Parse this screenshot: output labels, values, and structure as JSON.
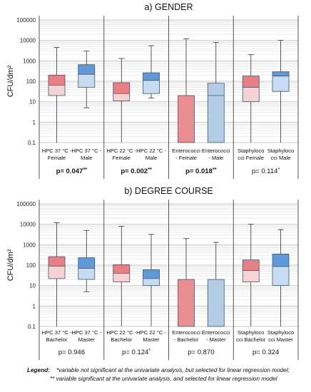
{
  "chart_data": [
    {
      "type": "boxplot",
      "title": "a) GENDER",
      "ylabel": "CFU/dm²",
      "yscale": "log",
      "ylim": [
        0.1,
        100000
      ],
      "ytick_labels": [
        "0.1",
        "1",
        "10",
        "100",
        "1000",
        "10000",
        "100000"
      ],
      "grid": true,
      "categories": [
        "HPC 37 °C - Female",
        "HPC 37 °C - Male",
        "HPC 22 °C - Female",
        "HPC 22 °C - Male",
        "Enterococci - Female",
        "Enterococci - Male",
        "Staphylococci Female",
        "Staphylococci Male"
      ],
      "category_lines": [
        [
          "HPC 37 °C -",
          "Female"
        ],
        [
          "HPC 37 °C -",
          "Male"
        ],
        [
          "HPC 22 °C -",
          "Female"
        ],
        [
          "HPC 22 °C -",
          "Male"
        ],
        [
          "Enterococci",
          "- Female"
        ],
        [
          "Enterococci",
          "- Male"
        ],
        [
          "Staphyloco",
          "cci Female"
        ],
        [
          "Staphyloco",
          "cci Male"
        ]
      ],
      "boxes": [
        {
          "min": 0.1,
          "q1": 20,
          "median": 65,
          "q3": 200,
          "max": 4500
        },
        {
          "min": 5,
          "q1": 50,
          "median": 220,
          "q3": 650,
          "max": 3000
        },
        {
          "min": 0.1,
          "q1": 11,
          "median": 25,
          "q3": 85,
          "max": 1300
        },
        {
          "min": 15,
          "q1": 25,
          "median": 110,
          "q3": 260,
          "max": 5500
        },
        {
          "min": 0.1,
          "q1": 0.1,
          "median": 0.1,
          "q3": 20,
          "max": 12000
        },
        {
          "min": 0.1,
          "q1": 0.1,
          "median": 20,
          "q3": 80,
          "max": 8000
        },
        {
          "min": 0.1,
          "q1": 10,
          "median": 50,
          "q3": 180,
          "max": 2000
        },
        {
          "min": 0.1,
          "q1": 32,
          "median": 180,
          "q3": 290,
          "max": 10000
        }
      ],
      "p_values": [
        {
          "label": "p= 0.047",
          "stars": "**",
          "bold": true
        },
        {
          "label": "p= 0.002",
          "stars": "**",
          "bold": true
        },
        {
          "label": "p= 0.018",
          "stars": "**",
          "bold": true
        },
        {
          "label": "p= 0.114",
          "stars": "*",
          "bold": false
        }
      ]
    },
    {
      "type": "boxplot",
      "title": "b) DEGREE COURSE",
      "ylabel": "CFU/dm²",
      "yscale": "log",
      "ylim": [
        0.1,
        100000
      ],
      "ytick_labels": [
        "0.1",
        "1",
        "10",
        "100",
        "1000",
        "10000",
        "100000"
      ],
      "grid": true,
      "categories": [
        "HPC 37 °C - Bachelor",
        "HPC 37 °C - Master",
        "HPC 22 °C - Bachelor",
        "HPC 22 °C - Master",
        "Enterococci - Bachelor",
        "Enterococci - Master",
        "Staphylococci Bachelor",
        "Staphylococci Master"
      ],
      "category_lines": [
        [
          "HPC 37 °C -",
          "Bachelor"
        ],
        [
          "HPC 37 °C -",
          "Master"
        ],
        [
          "HPC 22 °C -",
          "Bachelor"
        ],
        [
          "HPC 22 °C -",
          "Master"
        ],
        [
          "Enterococci",
          "- Bachelor"
        ],
        [
          "Enterococci",
          "- Master"
        ],
        [
          "Staphyloco",
          "cci Bachelor"
        ],
        [
          "Staphyloco",
          "cci Master"
        ]
      ],
      "boxes": [
        {
          "min": 0.1,
          "q1": 22,
          "median": 90,
          "q3": 260,
          "max": 12000
        },
        {
          "min": 5,
          "q1": 20,
          "median": 70,
          "q3": 230,
          "max": 5000
        },
        {
          "min": 0.1,
          "q1": 15,
          "median": 40,
          "q3": 105,
          "max": 8000
        },
        {
          "min": 0.1,
          "q1": 10,
          "median": 22,
          "q3": 60,
          "max": 3200
        },
        {
          "min": 0.1,
          "q1": 0.1,
          "median": 0.1,
          "q3": 20,
          "max": 2000
        },
        {
          "min": 0.1,
          "q1": 0.1,
          "median": 0.1,
          "q3": 20,
          "max": 1300
        },
        {
          "min": 0.1,
          "q1": 15,
          "median": 55,
          "q3": 180,
          "max": 10000
        },
        {
          "min": 0.1,
          "q1": 10,
          "median": 85,
          "q3": 350,
          "max": 5500
        }
      ],
      "p_values": [
        {
          "label": "p= 0.946",
          "stars": "",
          "bold": false
        },
        {
          "label": "p= 0.124",
          "stars": "*",
          "bold": false
        },
        {
          "label": "p= 0.870",
          "stars": "",
          "bold": false
        },
        {
          "label": "p= 0.324",
          "stars": "",
          "bold": false
        }
      ]
    }
  ],
  "colors": {
    "female_or_bachelor_fill": "#f5d2d4",
    "male_or_master_fill": "#c6dcf2",
    "enterococci_first_fill": "#eb8e92",
    "enterococci_second_fill": "#b3cde6",
    "q3_band_pink": "#e97f86",
    "q3_band_blue": "#5f9ad6",
    "box_border": "#44546a",
    "grid": "#c8c8c8",
    "axis": "#444444"
  },
  "legend": {
    "title": "Legend:",
    "line1": "*variable not significant at the univariate analysis, but selected for linear regression model;",
    "line2": "** variable significant at the univariate analysis, and selected for linear regression model"
  }
}
